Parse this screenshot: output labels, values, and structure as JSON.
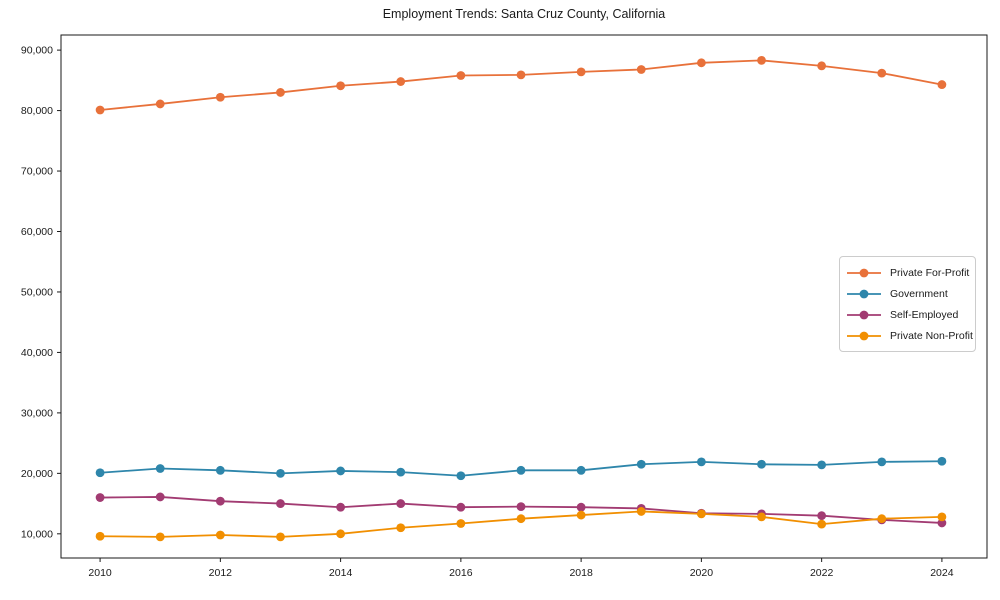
{
  "chart_data": {
    "type": "line",
    "title": "Employment Trends: Santa Cruz County, California",
    "xlabel": "",
    "ylabel": "",
    "x": [
      2010,
      2011,
      2012,
      2013,
      2014,
      2015,
      2016,
      2017,
      2018,
      2019,
      2020,
      2021,
      2022,
      2023,
      2024
    ],
    "series": [
      {
        "name": "Private For-Profit",
        "color": "#E8713A",
        "values": [
          80100,
          81100,
          82200,
          83000,
          84100,
          84800,
          85800,
          85900,
          86400,
          86800,
          87900,
          88300,
          87400,
          86200,
          84300
        ]
      },
      {
        "name": "Government",
        "color": "#2E86AB",
        "values": [
          20100,
          20800,
          20500,
          20000,
          20400,
          20200,
          19600,
          20500,
          20500,
          21500,
          21900,
          21500,
          21400,
          21900,
          22000
        ]
      },
      {
        "name": "Self-Employed",
        "color": "#A23B72",
        "values": [
          16000,
          16100,
          15400,
          15000,
          14400,
          15000,
          14400,
          14500,
          14400,
          14200,
          13400,
          13300,
          13000,
          12300,
          11800
        ]
      },
      {
        "name": "Private Non-Profit",
        "color": "#F18F01",
        "values": [
          9600,
          9500,
          9800,
          9500,
          10000,
          11000,
          11700,
          12500,
          13100,
          13700,
          13300,
          12800,
          11600,
          12500,
          12800
        ]
      }
    ],
    "xticks": [
      2010,
      2012,
      2014,
      2016,
      2018,
      2020,
      2022,
      2024
    ],
    "xtick_labels": [
      "2010",
      "2012",
      "2014",
      "2016",
      "2018",
      "2020",
      "2022",
      "2024"
    ],
    "yticks": [
      10000,
      20000,
      30000,
      40000,
      50000,
      60000,
      70000,
      80000,
      90000
    ],
    "ytick_labels": [
      "10,000",
      "20,000",
      "30,000",
      "40,000",
      "50,000",
      "60,000",
      "70,000",
      "80,000",
      "90,000"
    ],
    "xlim": [
      2009.35,
      2024.75
    ],
    "ylim": [
      6000,
      92500
    ],
    "grid": false,
    "legend_position": "right",
    "axis_color": "#1a1a1a"
  }
}
